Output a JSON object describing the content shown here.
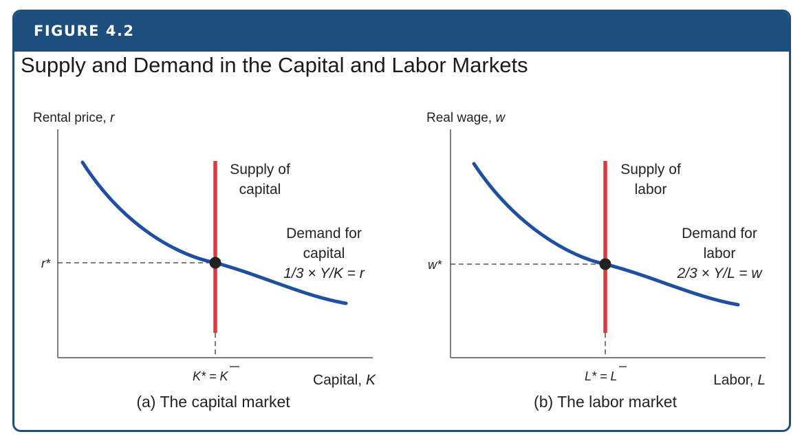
{
  "figure": {
    "number": "FIGURE 4.2",
    "title": "Supply and Demand in the Capital and Labor Markets"
  },
  "panels": [
    {
      "caption": "(a) The capital market",
      "y_axis_label_text": "Rental price, ",
      "y_axis_label_var": "r",
      "x_axis_label_text": "Capital, ",
      "x_axis_label_var": "K",
      "equilibrium_y": "r*",
      "equilibrium_x": "K* = K",
      "supply_label": [
        "Supply of",
        "capital"
      ],
      "demand_label": [
        "Demand for",
        "capital",
        "1/3 × Y/K = r"
      ]
    },
    {
      "caption": "(b) The labor market",
      "y_axis_label_text": "Real wage, ",
      "y_axis_label_var": "w",
      "x_axis_label_text": "Labor, ",
      "x_axis_label_var": "L",
      "equilibrium_y": "w*",
      "equilibrium_x": "L* = L",
      "supply_label": [
        "Supply of",
        "labor"
      ],
      "demand_label": [
        "Demand for",
        "labor",
        "2/3 × Y/L = w"
      ]
    }
  ],
  "colors": {
    "header": "#1d4e7e",
    "demand_curve": "#1f4fa3",
    "supply_line": "#d83a3f",
    "equilibrium_point": "#222222"
  }
}
